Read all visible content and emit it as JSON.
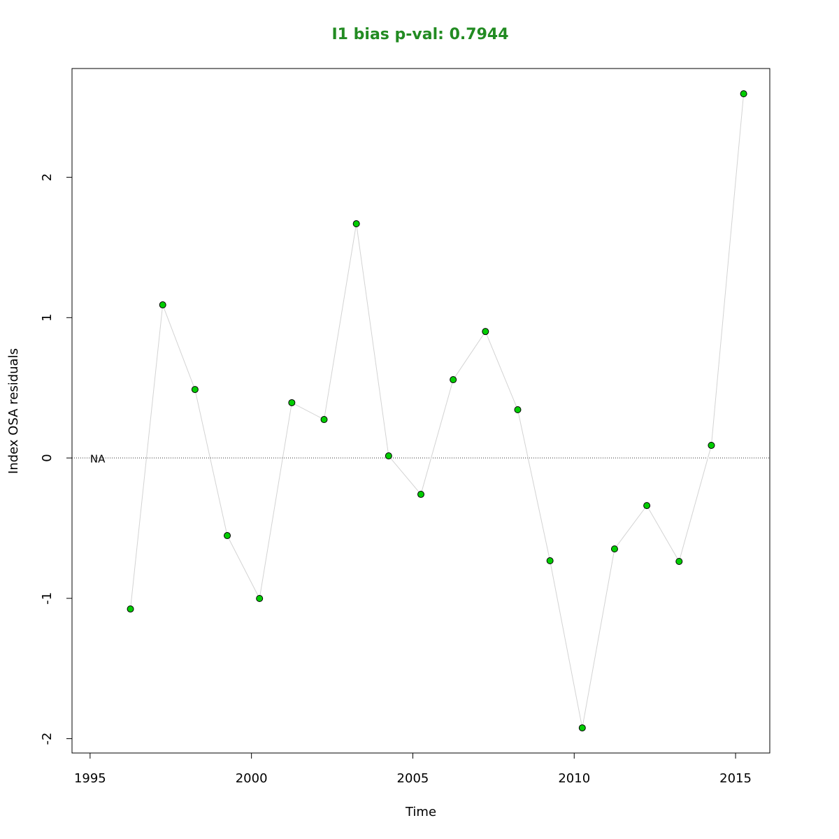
{
  "chart_data": {
    "type": "line",
    "title": "I1 bias p-val: 0.7944",
    "xlabel": "Time",
    "ylabel": "Index OSA residuals",
    "x": [
      1996.25,
      1997.25,
      1998.25,
      1999.25,
      2000.25,
      2001.25,
      2002.25,
      2003.25,
      2004.25,
      2005.25,
      2006.25,
      2007.25,
      2008.25,
      2009.25,
      2010.25,
      2011.25,
      2012.25,
      2013.25,
      2014.25,
      2015.25
    ],
    "series": [
      {
        "name": "I1",
        "color": "#00CD00",
        "line_color": "#d3d3d3",
        "values": [
          -1.076,
          1.091,
          0.488,
          -0.553,
          -1.001,
          0.394,
          0.274,
          1.669,
          0.015,
          -0.259,
          0.558,
          0.901,
          0.344,
          -0.732,
          -1.923,
          -0.648,
          -0.339,
          -0.737,
          0.09,
          2.595
        ]
      }
    ],
    "xlim": [
      1994.44,
      2016.06
    ],
    "ylim": [
      -2.102,
      2.775
    ],
    "xticks": [
      1995,
      2000,
      2005,
      2010,
      2015
    ],
    "yticks": [
      -2,
      -1,
      0,
      1,
      2
    ],
    "reference_line": 0,
    "annotations": [
      "NA"
    ]
  }
}
